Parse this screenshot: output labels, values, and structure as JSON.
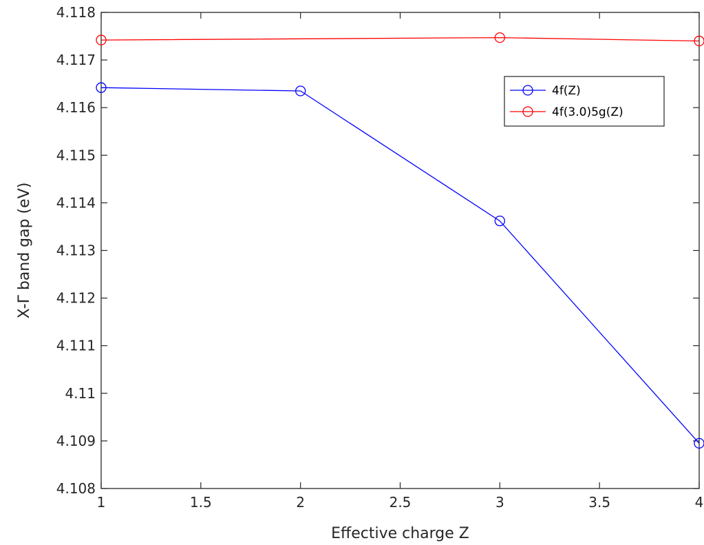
{
  "chart_data": {
    "type": "line",
    "xlabel": "Effective charge Z",
    "ylabel": "X-Γ band gap (eV)",
    "xlim": [
      1,
      4
    ],
    "ylim": [
      4.108,
      4.118
    ],
    "xticks": [
      1,
      1.5,
      2,
      2.5,
      3,
      3.5,
      4
    ],
    "xtick_labels": [
      "1",
      "1.5",
      "2",
      "2.5",
      "3",
      "3.5",
      "4"
    ],
    "yticks": [
      4.108,
      4.109,
      4.11,
      4.111,
      4.112,
      4.113,
      4.114,
      4.115,
      4.116,
      4.117,
      4.118
    ],
    "ytick_labels": [
      "4.108",
      "4.109",
      "4.11",
      "4.111",
      "4.112",
      "4.113",
      "4.114",
      "4.115",
      "4.116",
      "4.117",
      "4.118"
    ],
    "grid": false,
    "legend": "top-right",
    "series": [
      {
        "name": "4f(Z)",
        "color": "#0000ff",
        "marker": "circle",
        "x": [
          1,
          2,
          3,
          4
        ],
        "y": [
          4.11642,
          4.11635,
          4.11362,
          4.10895
        ]
      },
      {
        "name": "4f(3.0)5g(Z)",
        "color": "#ff0000",
        "marker": "circle",
        "x": [
          1,
          3,
          4
        ],
        "y": [
          4.11742,
          4.11747,
          4.1174
        ]
      }
    ]
  }
}
